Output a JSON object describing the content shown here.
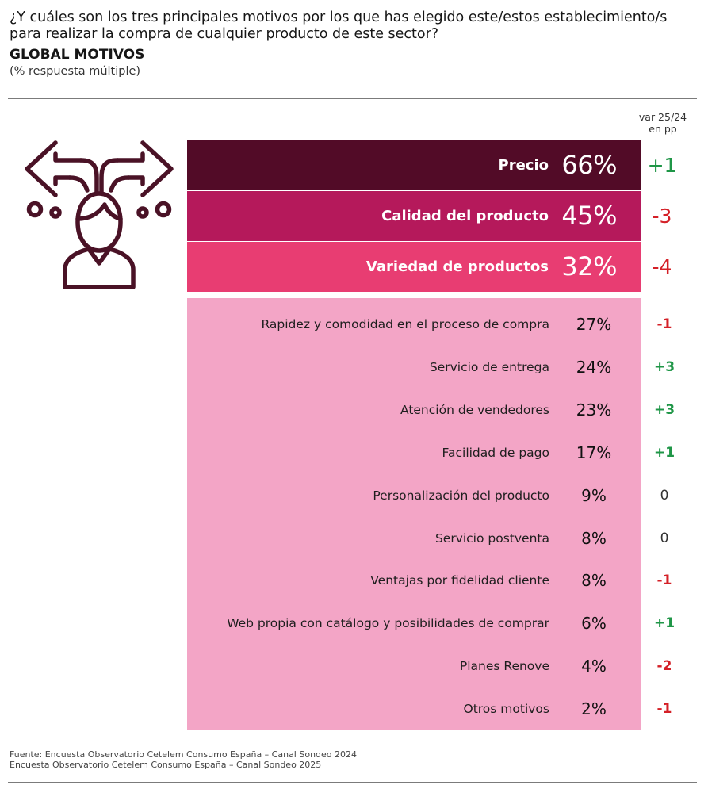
{
  "header": {
    "question": "¿Y cuáles son los tres principales motivos por los que has elegido este/estos establecimiento/s para realizar la compra de cualquier producto de este sector?",
    "subtitle": "GLOBAL MOTIVOS",
    "note": "(% respuesta múltiple)"
  },
  "var_header": {
    "line1": "var 25/24",
    "line2": "en pp"
  },
  "colors": {
    "top_bars": [
      "#520b27",
      "#b5195b",
      "#e83d72"
    ],
    "panel": "#f3a5c6",
    "positive": "#1f9647",
    "negative": "#d42027",
    "neutral": "#333333"
  },
  "icon": "person-crossroads-arrows-icon",
  "chart_data": {
    "type": "table",
    "unit": "%",
    "rows": [
      {
        "label": "Precio",
        "value": 66,
        "display": "66%",
        "var": "+1",
        "sign": "positive"
      },
      {
        "label": "Calidad del producto",
        "value": 45,
        "display": "45%",
        "var": "-3",
        "sign": "negative"
      },
      {
        "label": "Variedad de productos",
        "value": 32,
        "display": "32%",
        "var": "-4",
        "sign": "negative"
      },
      {
        "label": "Rapidez y comodidad en el proceso de compra",
        "value": 27,
        "display": "27%",
        "var": "-1",
        "sign": "negative"
      },
      {
        "label": "Servicio de entrega",
        "value": 24,
        "display": "24%",
        "var": "+3",
        "sign": "positive"
      },
      {
        "label": "Atención de vendedores",
        "value": 23,
        "display": "23%",
        "var": "+3",
        "sign": "positive"
      },
      {
        "label": "Facilidad de pago",
        "value": 17,
        "display": "17%",
        "var": "+1",
        "sign": "positive"
      },
      {
        "label": "Personalización del producto",
        "value": 9,
        "display": "9%",
        "var": "0",
        "sign": "neutral"
      },
      {
        "label": "Servicio postventa",
        "value": 8,
        "display": "8%",
        "var": "0",
        "sign": "neutral"
      },
      {
        "label": "Ventajas por fidelidad cliente",
        "value": 8,
        "display": "8%",
        "var": "-1",
        "sign": "negative"
      },
      {
        "label": "Web propia con catálogo y posibilidades de comprar",
        "value": 6,
        "display": "6%",
        "var": "+1",
        "sign": "positive"
      },
      {
        "label": "Planes Renove",
        "value": 4,
        "display": "4%",
        "var": "-2",
        "sign": "negative"
      },
      {
        "label": "Otros motivos",
        "value": 2,
        "display": "2%",
        "var": "-1",
        "sign": "negative"
      }
    ]
  },
  "footer": {
    "line1": "Fuente: Encuesta Observatorio Cetelem Consumo España – Canal Sondeo 2024",
    "line2": "Encuesta Observatorio Cetelem Consumo España – Canal Sondeo 2025"
  }
}
